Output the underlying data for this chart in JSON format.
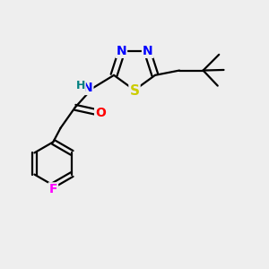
{
  "bg_color": "#eeeeee",
  "bond_color": "#000000",
  "bond_width": 1.6,
  "atom_colors": {
    "N": "#0000ff",
    "S": "#cccc00",
    "O": "#ff0000",
    "F": "#ff00ff",
    "H": "#008080",
    "C": "#000000"
  },
  "font_size": 10,
  "fig_size": [
    3.0,
    3.0
  ],
  "dpi": 100
}
